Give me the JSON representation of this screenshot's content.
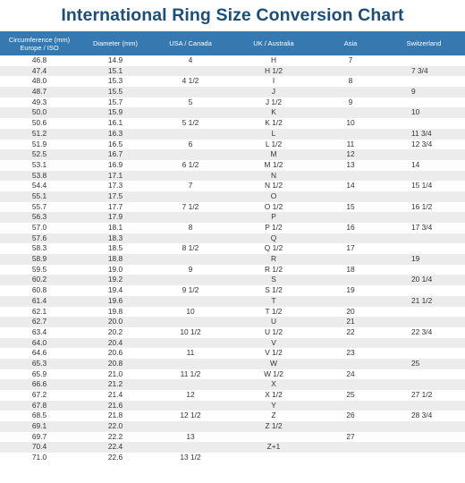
{
  "title": "International Ring Size Conversion Chart",
  "headers": [
    "Circumference (mm) Europe / ISO",
    "Diameter (mm)",
    "USA / Canada",
    "UK / Australia",
    "Asia",
    "Switzerland"
  ],
  "rows": [
    [
      "46.8",
      "14.9",
      "4",
      "H",
      "7",
      ""
    ],
    [
      "47.4",
      "15.1",
      "",
      "H 1/2",
      "",
      "7 3/4"
    ],
    [
      "48.0",
      "15.3",
      "4 1/2",
      "I",
      "8",
      ""
    ],
    [
      "48.7",
      "15.5",
      "",
      "J",
      "",
      "9"
    ],
    [
      "49.3",
      "15.7",
      "5",
      "J 1/2",
      "9",
      ""
    ],
    [
      "50.0",
      "15.9",
      "",
      "K",
      "",
      "10"
    ],
    [
      "50.6",
      "16.1",
      "5 1/2",
      "K 1/2",
      "10",
      ""
    ],
    [
      "51.2",
      "16.3",
      "",
      "L",
      "",
      "11 3/4"
    ],
    [
      "51.9",
      "16.5",
      "6",
      "L 1/2",
      "11",
      "12 3/4"
    ],
    [
      "52.5",
      "16.7",
      "",
      "M",
      "12",
      ""
    ],
    [
      "53.1",
      "16.9",
      "6 1/2",
      "M 1/2",
      "13",
      "14"
    ],
    [
      "53.8",
      "17.1",
      "",
      "N",
      "",
      ""
    ],
    [
      "54.4",
      "17.3",
      "7",
      "N 1/2",
      "14",
      "15 1/4"
    ],
    [
      "55.1",
      "17.5",
      "",
      "O",
      "",
      ""
    ],
    [
      "55.7",
      "17.7",
      "7 1/2",
      "O 1/2",
      "15",
      "16 1/2"
    ],
    [
      "56.3",
      "17.9",
      "",
      "P",
      "",
      ""
    ],
    [
      "57.0",
      "18.1",
      "8",
      "P 1/2",
      "16",
      "17 3/4"
    ],
    [
      "57.6",
      "18.3",
      "",
      "Q",
      "",
      ""
    ],
    [
      "58.3",
      "18.5",
      "8 1/2",
      "Q 1/2",
      "17",
      ""
    ],
    [
      "58.9",
      "18.8",
      "",
      "R",
      "",
      "19"
    ],
    [
      "59.5",
      "19.0",
      "9",
      "R 1/2",
      "18",
      ""
    ],
    [
      "60.2",
      "19.2",
      "",
      "S",
      "",
      "20 1/4"
    ],
    [
      "60.8",
      "19.4",
      "9 1/2",
      "S 1/2",
      "19",
      ""
    ],
    [
      "61.4",
      "19.6",
      "",
      "T",
      "",
      "21 1/2"
    ],
    [
      "62.1",
      "19.8",
      "10",
      "T 1/2",
      "20",
      ""
    ],
    [
      "62.7",
      "20.0",
      "",
      "U",
      "21",
      ""
    ],
    [
      "63.4",
      "20.2",
      "10 1/2",
      "U 1/2",
      "22",
      "22 3/4"
    ],
    [
      "64.0",
      "20.4",
      "",
      "V",
      "",
      ""
    ],
    [
      "64.6",
      "20.6",
      "11",
      "V 1/2",
      "23",
      ""
    ],
    [
      "65.3",
      "20.8",
      "",
      "W",
      "",
      "25"
    ],
    [
      "65.9",
      "21.0",
      "11 1/2",
      "W 1/2",
      "24",
      ""
    ],
    [
      "66.6",
      "21.2",
      "",
      "X",
      "",
      ""
    ],
    [
      "67.2",
      "21.4",
      "12",
      "X 1/2",
      "25",
      "27 1/2"
    ],
    [
      "67.8",
      "21.6",
      "",
      "Y",
      "",
      ""
    ],
    [
      "68.5",
      "21.8",
      "12 1/2",
      "Z",
      "26",
      "28 3/4"
    ],
    [
      "69.1",
      "22.0",
      "",
      "Z 1/2",
      "",
      ""
    ],
    [
      "69.7",
      "22.2",
      "13",
      "",
      "27",
      ""
    ],
    [
      "70.4",
      "22.4",
      "",
      "Z+1",
      "",
      ""
    ],
    [
      "71.0",
      "22.6",
      "13 1/2",
      "",
      "",
      ""
    ]
  ],
  "colors": {
    "title": "#1d4e79",
    "header_bg": "#3579b0",
    "row_alt": "#ececec"
  }
}
